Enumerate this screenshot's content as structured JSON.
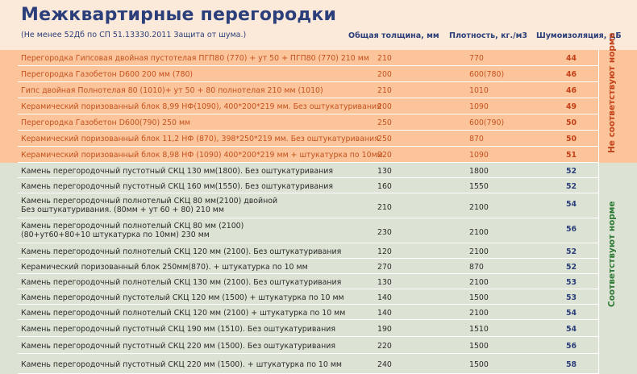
{
  "header": {
    "title": "Межквартирные перегородки",
    "subtitle": "(Не менее 52Дб по СП 51.13330.2011 Защита от шума.)",
    "col_thickness": "Общая толщина, мм",
    "col_density": "Плотность, кг./м3",
    "col_noise": "Шумоизоляция, дБ"
  },
  "labels": {
    "bad": "Не соответствуют норме",
    "good": "Соответствуют норме"
  },
  "bad_rows": [
    {
      "name": "Перегородка Гипсовая двойная пустотелая ПГП80 (770) + ут 50 + ПГП80 (770) 210 мм",
      "thickness": "210",
      "density": "770",
      "noise": "44"
    },
    {
      "name": "Перегородка Газобетон D600 200 мм (780)",
      "thickness": "200",
      "density": "600(780)",
      "noise": "46"
    },
    {
      "name": "Гипс двойная Полнотелая 80 (1010)+ ут 50 + 80 полнотелая 210 мм (1010)",
      "thickness": "210",
      "density": "1010",
      "noise": "46"
    },
    {
      "name": "Керамический поризованный блок  8,99 НФ(1090), 400*200*219 мм. Без оштукатуривания",
      "thickness": "200",
      "density": "1090",
      "noise": "49"
    },
    {
      "name": "Перегородка Газобетон D600(790) 250 мм",
      "thickness": "250",
      "density": "600(790)",
      "noise": "50"
    },
    {
      "name": "Керамический поризованный блок 11,2 НФ (870), 398*250*219 мм. Без оштукатуривания",
      "thickness": "250",
      "density": "870",
      "noise": "50"
    },
    {
      "name": "Керамический поризованный блок 8,98 НФ (1090) 400*200*219 мм + штукатурка по 10мм",
      "thickness": "220",
      "density": "1090",
      "noise": "51"
    }
  ],
  "good_rows": [
    {
      "name": "Камень перегородочный пустотный СКЦ 130 мм(1800). Без оштукатуривания",
      "name2": "",
      "thickness": "130",
      "density": "1800",
      "noise": "52"
    },
    {
      "name": "Камень перегородочный пустотный СКЦ 160 мм(1550). Без оштукатуривания",
      "name2": "",
      "thickness": "160",
      "density": "1550",
      "noise": "52"
    },
    {
      "name": "Камень перегородочный полнотелый СКЦ 80 мм(2100) двойной",
      "name2": "Без оштукатуривания. (80мм + ут 60 + 80) 210 мм",
      "thickness": "210",
      "density": "2100",
      "noise": "54"
    },
    {
      "name": "Камень перегородочный полнотелый СКЦ 80 мм (2100)",
      "name2": "(80+ут60+80+10 штукатурка по 10мм) 230 мм",
      "thickness": "230",
      "density": "2100",
      "noise": "56"
    },
    {
      "name": "Камень перегородочный полнотелый СКЦ 120 мм (2100). Без оштукатуривания",
      "name2": "",
      "thickness": "120",
      "density": "2100",
      "noise": "52"
    },
    {
      "name": "Керамический поризованный блок 250мм(870). + штукатурка по 10 мм",
      "name2": "",
      "thickness": "270",
      "density": "870",
      "noise": "52"
    },
    {
      "name": "Камень перегородочный полнотелый СКЦ 130 мм (2100). Без оштукатуривания",
      "name2": "",
      "thickness": "130",
      "density": "2100",
      "noise": "53"
    },
    {
      "name": "Камень перегородочный пустотелый СКЦ 120 мм (1500) + штукатурка по 10 мм",
      "name2": "",
      "thickness": "140",
      "density": "1500",
      "noise": "53"
    },
    {
      "name": "Камень перегородочный полнотелый СКЦ 120 мм (2100) + штукатурка по 10 мм",
      "name2": "",
      "thickness": "140",
      "density": "2100",
      "noise": "54"
    },
    {
      "name": "Камень перегородочный пустотный СКЦ 190 мм (1510). Без оштукатуривания",
      "name2": "",
      "thickness": "190",
      "density": "1510",
      "noise": "54"
    },
    {
      "name": "Камень перегородочный пустотный СКЦ 220 мм (1500). Без оштукатуривания",
      "name2": "",
      "thickness": "220",
      "density": "1500",
      "noise": "56"
    },
    {
      "name": "Камень перегородочный пустотный СКЦ 220 мм (1500). + штукатурка по 10 мм",
      "name2": "",
      "thickness": "240",
      "density": "1500",
      "noise": "58"
    }
  ]
}
